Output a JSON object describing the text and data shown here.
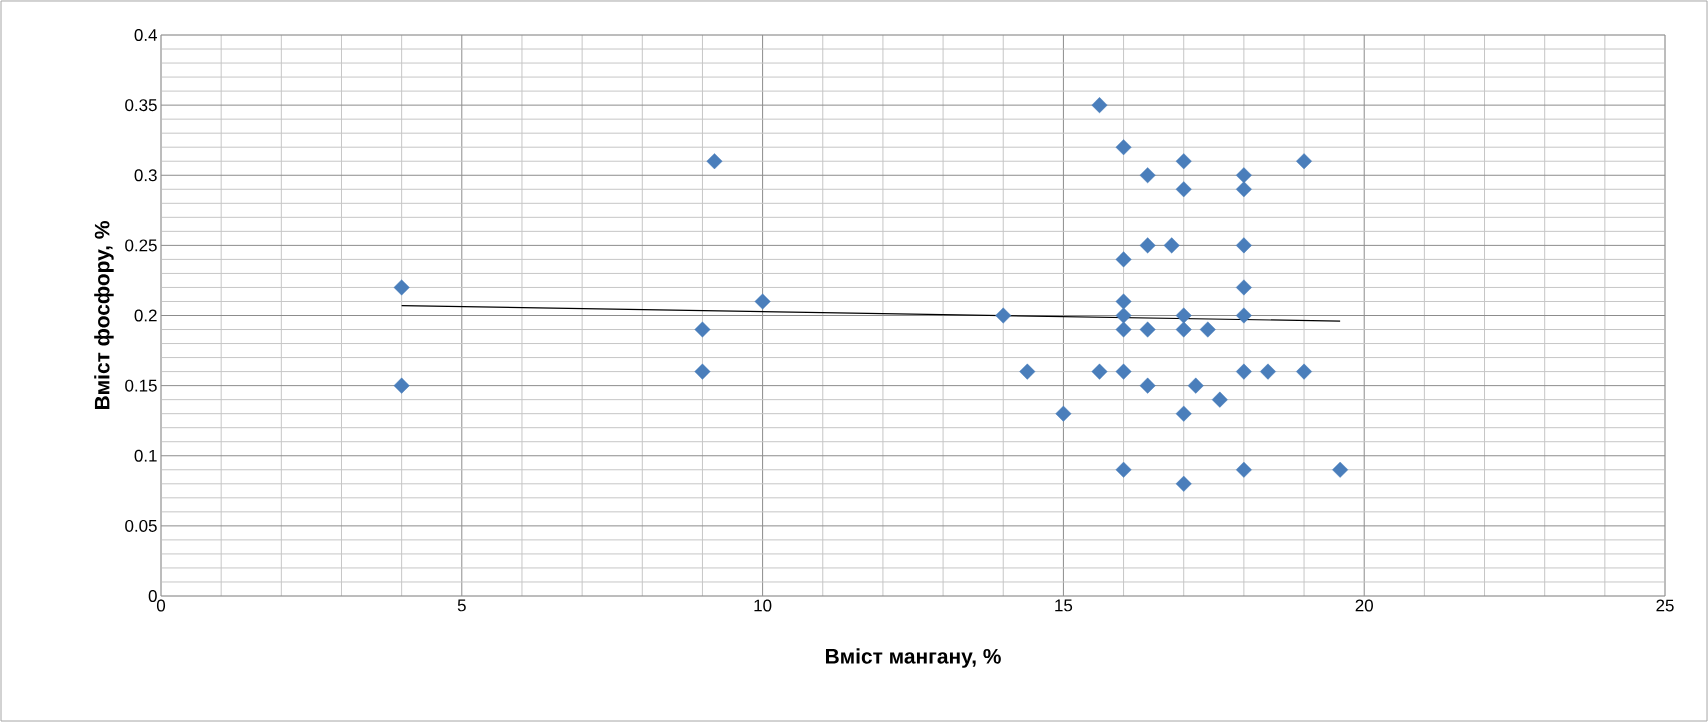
{
  "chart_data": {
    "type": "scatter",
    "xlabel": "Вміст мангану, %",
    "ylabel": "Вміст фосфору, %",
    "xlim": [
      0,
      25
    ],
    "xticks": [
      0,
      5,
      10,
      15,
      20,
      25
    ],
    "ylim": [
      0,
      0.4
    ],
    "yticks": [
      0,
      0.05,
      0.1,
      0.15,
      0.2,
      0.25,
      0.3,
      0.35,
      0.4
    ],
    "grid": true,
    "marker": "diamond",
    "series": [
      {
        "color": "#4a7ebb",
        "x": [
          4,
          4,
          9.2,
          9,
          9,
          10,
          15.6,
          16,
          17,
          19,
          16.4,
          18,
          17,
          18,
          16.4,
          16.8,
          18,
          16,
          18,
          16,
          14,
          16,
          17,
          18,
          16,
          16.4,
          17,
          17.4,
          14.4,
          15.6,
          16,
          18,
          18.4,
          19,
          16.4,
          17.2,
          17.6,
          15,
          17,
          16,
          18,
          17,
          19.6
        ],
        "values": [
          0.22,
          0.15,
          0.31,
          0.19,
          0.16,
          0.21,
          0.35,
          0.32,
          0.31,
          0.31,
          0.3,
          0.3,
          0.29,
          0.29,
          0.25,
          0.25,
          0.25,
          0.24,
          0.22,
          0.21,
          0.2,
          0.2,
          0.2,
          0.2,
          0.19,
          0.19,
          0.19,
          0.19,
          0.16,
          0.16,
          0.16,
          0.16,
          0.16,
          0.16,
          0.15,
          0.15,
          0.14,
          0.13,
          0.13,
          0.09,
          0.09,
          0.08,
          0.09
        ]
      },
      {
        "type": "line",
        "color": "#000000",
        "marker": "none",
        "x": [
          4,
          19.6
        ],
        "values": [
          0.207,
          0.196
        ]
      }
    ]
  }
}
